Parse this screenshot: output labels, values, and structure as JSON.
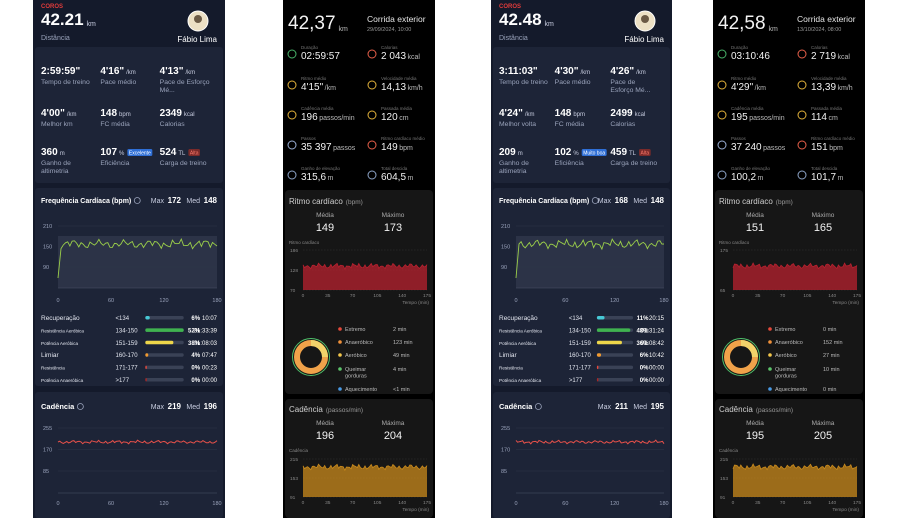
{
  "panels": [
    {
      "brand": "COROS",
      "distance": "42.21",
      "distance_unit": "km",
      "distance_label": "Distância",
      "athlete": "Fábio Lima",
      "stats": [
        {
          "value": "2:59:59\"",
          "label": "Tempo de treino"
        },
        {
          "value": "4'16\"",
          "unit": "/km",
          "label": "Pace médio"
        },
        {
          "value": "4'13\"",
          "unit": "/km",
          "label": "Pace de Esforço Mé..."
        },
        {
          "value": "4'00\"",
          "unit": "/km",
          "label": "Melhor km"
        },
        {
          "value": "148",
          "unit": "bpm",
          "label": "FC média"
        },
        {
          "value": "2349",
          "unit": "kcal",
          "label": "Calorias"
        },
        {
          "value": "360",
          "unit": "m",
          "label": "Ganho de altimetria"
        },
        {
          "value": "107",
          "unit": "%",
          "badge": "Excelente",
          "label": "Eficiência"
        },
        {
          "value": "524",
          "unit": "TL",
          "badge": "Alta",
          "label": "Carga de treino"
        }
      ],
      "heart_rate": {
        "title": "Frequência Cardíaca (bpm)",
        "max_label": "Max",
        "max": "172",
        "med_label": "Med",
        "med": "148",
        "yticks": [
          "210",
          "150",
          "90"
        ],
        "xticks": [
          "0",
          "60",
          "120",
          "180"
        ],
        "zones": [
          {
            "name": "Recuperação",
            "range": "<134",
            "pct": "6%",
            "time": "10:07"
          },
          {
            "name": "Resistência Aeróbica",
            "range": "134-150",
            "pct": "52%",
            "time": "01:33:39"
          },
          {
            "name": "Potência Aeróbica",
            "range": "151-159",
            "pct": "38%",
            "time": "01:08:03"
          },
          {
            "name": "Limiar",
            "range": "160-170",
            "pct": "4%",
            "time": "07:47"
          },
          {
            "name": "Resistência",
            "range": "171-177",
            "pct": "0%",
            "time": "00:23"
          },
          {
            "name": "Potência Anaeróbica",
            "range": ">177",
            "pct": "0%",
            "time": "00:00"
          }
        ]
      },
      "cadence": {
        "title": "Cadência",
        "max_label": "Max",
        "max": "219",
        "med_label": "Med",
        "med": "196",
        "yticks": [
          "255",
          "170",
          "85"
        ],
        "xticks": [
          "0",
          "60",
          "120",
          "180"
        ]
      }
    },
    {
      "distance": "42,37",
      "distance_unit": "km",
      "activity": "Corrida exterior",
      "date": "29/09/2024, 10:00",
      "metrics": [
        {
          "label": "Duração",
          "value": "02:59:57"
        },
        {
          "label": "Calorias",
          "value": "2 043",
          "unit": "kcal"
        },
        {
          "label": "Ritmo médio",
          "value": "4'15\"",
          "unit": "/km"
        },
        {
          "label": "Velocidade média",
          "value": "14,13",
          "unit": "km/h"
        },
        {
          "label": "Cadência média",
          "value": "196",
          "unit": "passos/min"
        },
        {
          "label": "Passada média",
          "value": "120",
          "unit": "cm"
        },
        {
          "label": "Passos",
          "value": "35 397",
          "unit": "passos"
        },
        {
          "label": "Ritmo cardíaco médio",
          "value": "149",
          "unit": "bpm"
        },
        {
          "label": "Ganho de elevação",
          "value": "315,6",
          "unit": "m"
        },
        {
          "label": "Total descida",
          "value": "604,5",
          "unit": "m"
        }
      ],
      "heart_rate": {
        "title": "Ritmo cardíaco",
        "unit": "(bpm)",
        "avg_label": "Média",
        "avg": "149",
        "max_label": "Máximo",
        "max": "173",
        "chart_label": "Ritmo cardíaco",
        "yticks": [
          "186",
          "128",
          "70"
        ],
        "xticks": [
          "0",
          "35",
          "70",
          "105",
          "140",
          "175"
        ],
        "x_label": "Tempo (min)",
        "zones": [
          {
            "name": "Extremo",
            "value": "2 min"
          },
          {
            "name": "Anaeróbico",
            "value": "123 min"
          },
          {
            "name": "Aeróbico",
            "value": "49 min"
          },
          {
            "name": "Queimar gorduras",
            "value": "4 min"
          },
          {
            "name": "Aquecimento",
            "value": "<1 min"
          }
        ]
      },
      "cadence": {
        "title": "Cadência",
        "unit": "(passos/min)",
        "avg_label": "Média",
        "avg": "196",
        "max_label": "Máxima",
        "max": "204",
        "chart_label": "Cadência",
        "yticks": [
          "215",
          "153",
          "91"
        ],
        "xticks": [
          "0",
          "35",
          "70",
          "105",
          "140",
          "175"
        ],
        "x_label": "Tempo (min)"
      }
    },
    {
      "brand": "COROS",
      "distance": "42.48",
      "distance_unit": "km",
      "distance_label": "Distância",
      "athlete": "Fábio Lima",
      "stats": [
        {
          "value": "3:11:03\"",
          "label": "Tempo de treino"
        },
        {
          "value": "4'30\"",
          "unit": "/km",
          "label": "Pace médio"
        },
        {
          "value": "4'26\"",
          "unit": "/km",
          "label": "Pace de Esforço Mé..."
        },
        {
          "value": "4'24\"",
          "unit": "/km",
          "label": "Melhor volta"
        },
        {
          "value": "148",
          "unit": "bpm",
          "label": "FC média"
        },
        {
          "value": "2499",
          "unit": "kcal",
          "label": "Calorias"
        },
        {
          "value": "209",
          "unit": "m",
          "label": "Ganho de altimetria"
        },
        {
          "value": "102",
          "unit": "%",
          "badge": "Muito boa",
          "label": "Eficiência"
        },
        {
          "value": "459",
          "unit": "TL",
          "badge": "Alta",
          "label": "Carga de treino"
        }
      ],
      "heart_rate": {
        "title": "Frequência Cardíaca (bpm)",
        "max_label": "Max",
        "max": "168",
        "med_label": "Med",
        "med": "148",
        "yticks": [
          "210",
          "150",
          "90"
        ],
        "xticks": [
          "0",
          "60",
          "120",
          "180"
        ],
        "zones": [
          {
            "name": "Recuperação",
            "range": "<134",
            "pct": "11%",
            "time": "20:15"
          },
          {
            "name": "Resistência Aeróbica",
            "range": "134-150",
            "pct": "48%",
            "time": "01:31:24"
          },
          {
            "name": "Potência Aeróbica",
            "range": "151-159",
            "pct": "36%",
            "time": "01:08:42"
          },
          {
            "name": "Limiar",
            "range": "160-170",
            "pct": "6%",
            "time": "10:42"
          },
          {
            "name": "Resistência",
            "range": "171-177",
            "pct": "0%",
            "time": "00:00"
          },
          {
            "name": "Potência Anaeróbica",
            "range": ">177",
            "pct": "0%",
            "time": "00:00"
          }
        ]
      },
      "cadence": {
        "title": "Cadência",
        "max_label": "Max",
        "max": "211",
        "med_label": "Med",
        "med": "195",
        "yticks": [
          "255",
          "170",
          "85"
        ],
        "xticks": [
          "0",
          "60",
          "120",
          "180"
        ]
      }
    },
    {
      "distance": "42,58",
      "distance_unit": "km",
      "activity": "Corrida exterior",
      "date": "13/10/2024, 08:00",
      "metrics": [
        {
          "label": "Duração",
          "value": "03:10:46"
        },
        {
          "label": "Calorias",
          "value": "2 719",
          "unit": "kcal"
        },
        {
          "label": "Ritmo médio",
          "value": "4'29\"",
          "unit": "/km"
        },
        {
          "label": "Velocidade média",
          "value": "13,39",
          "unit": "km/h"
        },
        {
          "label": "Cadência média",
          "value": "195",
          "unit": "passos/min"
        },
        {
          "label": "Passada média",
          "value": "114",
          "unit": "cm"
        },
        {
          "label": "Passos",
          "value": "37 240",
          "unit": "passos"
        },
        {
          "label": "Ritmo cardíaco médio",
          "value": "151",
          "unit": "bpm"
        },
        {
          "label": "Ganho de elevação",
          "value": "100,2",
          "unit": "m"
        },
        {
          "label": "Total descida",
          "value": "101,7",
          "unit": "m"
        }
      ],
      "heart_rate": {
        "title": "Ritmo cardíaco",
        "unit": "(bpm)",
        "avg_label": "Média",
        "avg": "151",
        "max_label": "Máximo",
        "max": "165",
        "chart_label": "Ritmo cardíaco",
        "yticks": [
          "175",
          "65"
        ],
        "xticks": [
          "0",
          "35",
          "70",
          "105",
          "140",
          "175"
        ],
        "x_label": "Tempo (min)",
        "zones": [
          {
            "name": "Extremo",
            "value": "0 min"
          },
          {
            "name": "Anaeróbico",
            "value": "152 min"
          },
          {
            "name": "Aeróbico",
            "value": "27 min"
          },
          {
            "name": "Queimar gorduras",
            "value": "10 min"
          },
          {
            "name": "Aquecimento",
            "value": "0 min"
          }
        ]
      },
      "cadence": {
        "title": "Cadência",
        "unit": "(passos/min)",
        "avg_label": "Média",
        "avg": "195",
        "max_label": "Máxima",
        "max": "205",
        "chart_label": "Cadência",
        "yticks": [
          "215",
          "153",
          "91"
        ],
        "xticks": [
          "0",
          "35",
          "70",
          "105",
          "140",
          "175"
        ],
        "x_label": "Tempo (min)"
      }
    }
  ]
}
